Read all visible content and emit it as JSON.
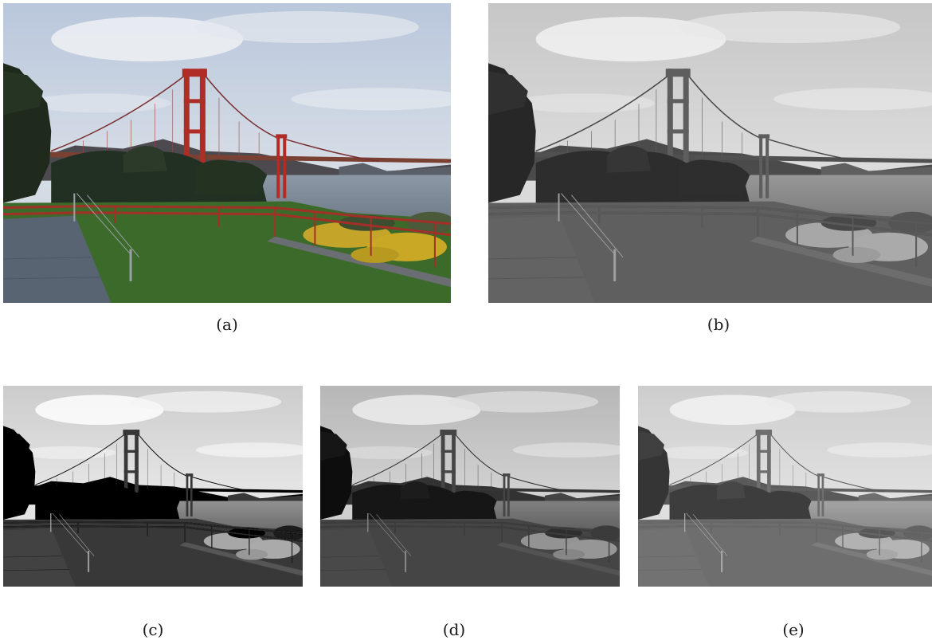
{
  "panels": [
    {
      "id": "a",
      "caption": "(a)",
      "mode": "color"
    },
    {
      "id": "b",
      "caption": "(b)",
      "mode": "gray"
    },
    {
      "id": "c",
      "caption": "(c)",
      "mode": "gray-contrast"
    },
    {
      "id": "d",
      "caption": "(d)",
      "mode": "gray-dark"
    },
    {
      "id": "e",
      "caption": "(e)",
      "mode": "gray-light"
    }
  ]
}
